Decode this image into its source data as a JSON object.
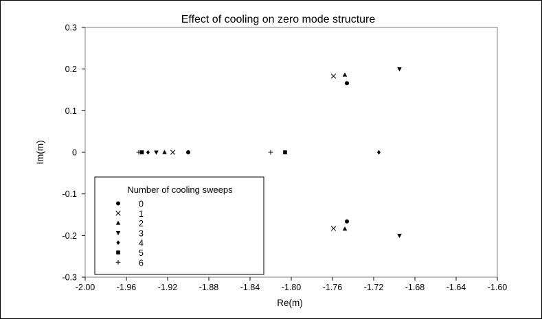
{
  "chart_data": {
    "type": "scatter",
    "title": "Effect of cooling on zero mode structure",
    "xlabel": "Re(m)",
    "ylabel": "Im(m)",
    "xlim": [
      -2.0,
      -1.6
    ],
    "ylim": [
      -0.3,
      0.3
    ],
    "x_ticks": [
      "-2.00",
      "-1.96",
      "-1.92",
      "-1.88",
      "-1.84",
      "-1.80",
      "-1.76",
      "-1.72",
      "-1.68",
      "-1.64",
      "-1.60"
    ],
    "x_tick_values": [
      -2.0,
      -1.96,
      -1.92,
      -1.88,
      -1.84,
      -1.8,
      -1.76,
      -1.72,
      -1.68,
      -1.64,
      -1.6
    ],
    "y_ticks": [
      "0.3",
      "0.2",
      "0.1",
      "0",
      "-0.1",
      "-0.2",
      "-0.3"
    ],
    "y_tick_values": [
      0.3,
      0.2,
      0.1,
      0,
      -0.1,
      -0.2,
      -0.3
    ],
    "grid": false,
    "legend": {
      "title": "Number of cooling sweeps",
      "placement": "bottom-left"
    },
    "series": [
      {
        "name": "0",
        "marker": "circle",
        "points": [
          [
            -1.9,
            0.0
          ],
          [
            -1.746,
            0.166
          ],
          [
            -1.746,
            -0.166
          ]
        ]
      },
      {
        "name": "1",
        "marker": "x",
        "points": [
          [
            -1.915,
            0.0
          ],
          [
            -1.759,
            0.183
          ],
          [
            -1.759,
            -0.183
          ]
        ]
      },
      {
        "name": "2",
        "marker": "triangle-up",
        "points": [
          [
            -1.923,
            0.0
          ],
          [
            -1.748,
            0.186
          ],
          [
            -1.748,
            -0.184
          ]
        ]
      },
      {
        "name": "3",
        "marker": "triangle-down",
        "points": [
          [
            -1.931,
            0.0
          ],
          [
            -1.695,
            0.2
          ],
          [
            -1.695,
            -0.2
          ]
        ]
      },
      {
        "name": "4",
        "marker": "diamond",
        "points": [
          [
            -1.939,
            0.0
          ],
          [
            -1.715,
            0.0
          ]
        ]
      },
      {
        "name": "5",
        "marker": "square",
        "points": [
          [
            -1.945,
            0.0
          ],
          [
            -1.806,
            0.0
          ]
        ]
      },
      {
        "name": "6",
        "marker": "plus",
        "points": [
          [
            -1.948,
            0.0
          ],
          [
            -1.82,
            0.0
          ]
        ]
      }
    ]
  }
}
